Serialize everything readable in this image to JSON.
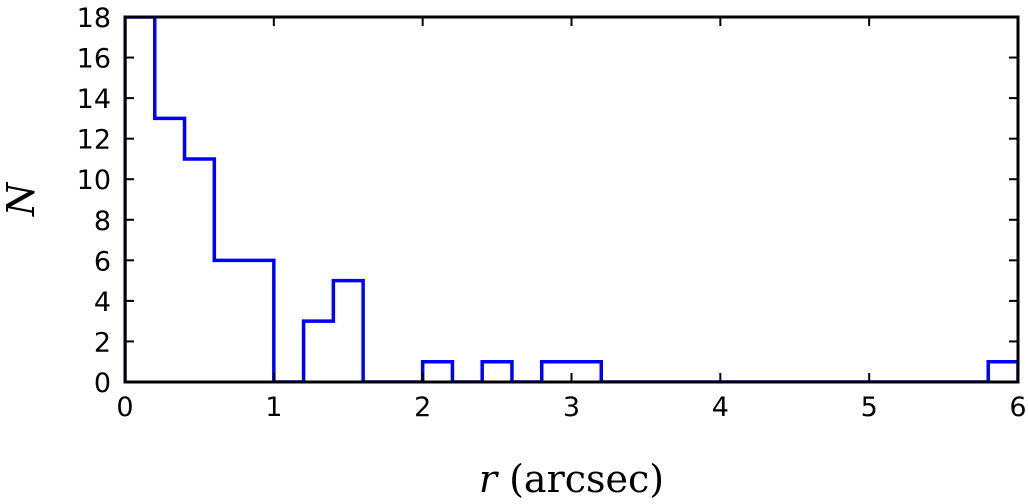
{
  "chart_data": {
    "type": "histogram",
    "xlabel_var": "r",
    "xlabel_unit": "(arcsec)",
    "ylabel": "N",
    "xlim": [
      0,
      6
    ],
    "ylim": [
      0,
      18
    ],
    "xticks": [
      "0",
      "1",
      "2",
      "3",
      "4",
      "5",
      "6"
    ],
    "yticks": [
      "0",
      "2",
      "4",
      "6",
      "8",
      "10",
      "12",
      "14",
      "16",
      "18"
    ],
    "bin_width": 0.2,
    "bin_edges": [
      0,
      0.2,
      0.4,
      0.6,
      0.8,
      1.0,
      1.2,
      1.4,
      1.6,
      1.8,
      2.0,
      2.2,
      2.4,
      2.6,
      2.8,
      3.0,
      3.2,
      3.4,
      3.6,
      3.8,
      4.0,
      4.2,
      4.4,
      4.6,
      4.8,
      5.0,
      5.2,
      5.4,
      5.6,
      5.8,
      6.0
    ],
    "counts": [
      18,
      13,
      11,
      6,
      6,
      0,
      3,
      5,
      0,
      0,
      1,
      0,
      1,
      0,
      1,
      1,
      0,
      0,
      0,
      0,
      0,
      0,
      0,
      0,
      0,
      0,
      0,
      0,
      0,
      1
    ],
    "line_color": "#0000ff",
    "grid": false
  }
}
